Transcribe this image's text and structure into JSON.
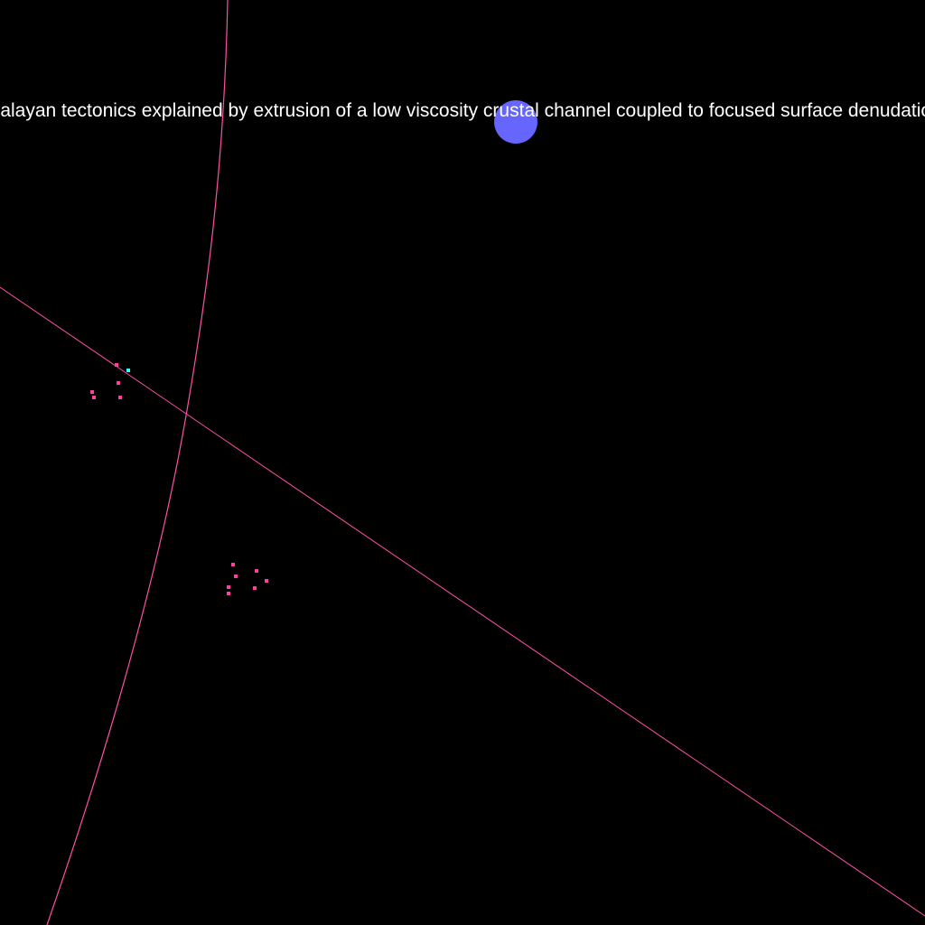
{
  "label": {
    "text": "Himalayan tectonics explained by extrusion of a low viscosity crustal channel coupled to focused surface denudation"
  },
  "colors": {
    "background": "#000000",
    "curve": "#ff4fa3",
    "marker": "#6666ff",
    "dot": "#ff3fa0",
    "highlight_dot": "#33ffff",
    "text": "#ffffff"
  }
}
